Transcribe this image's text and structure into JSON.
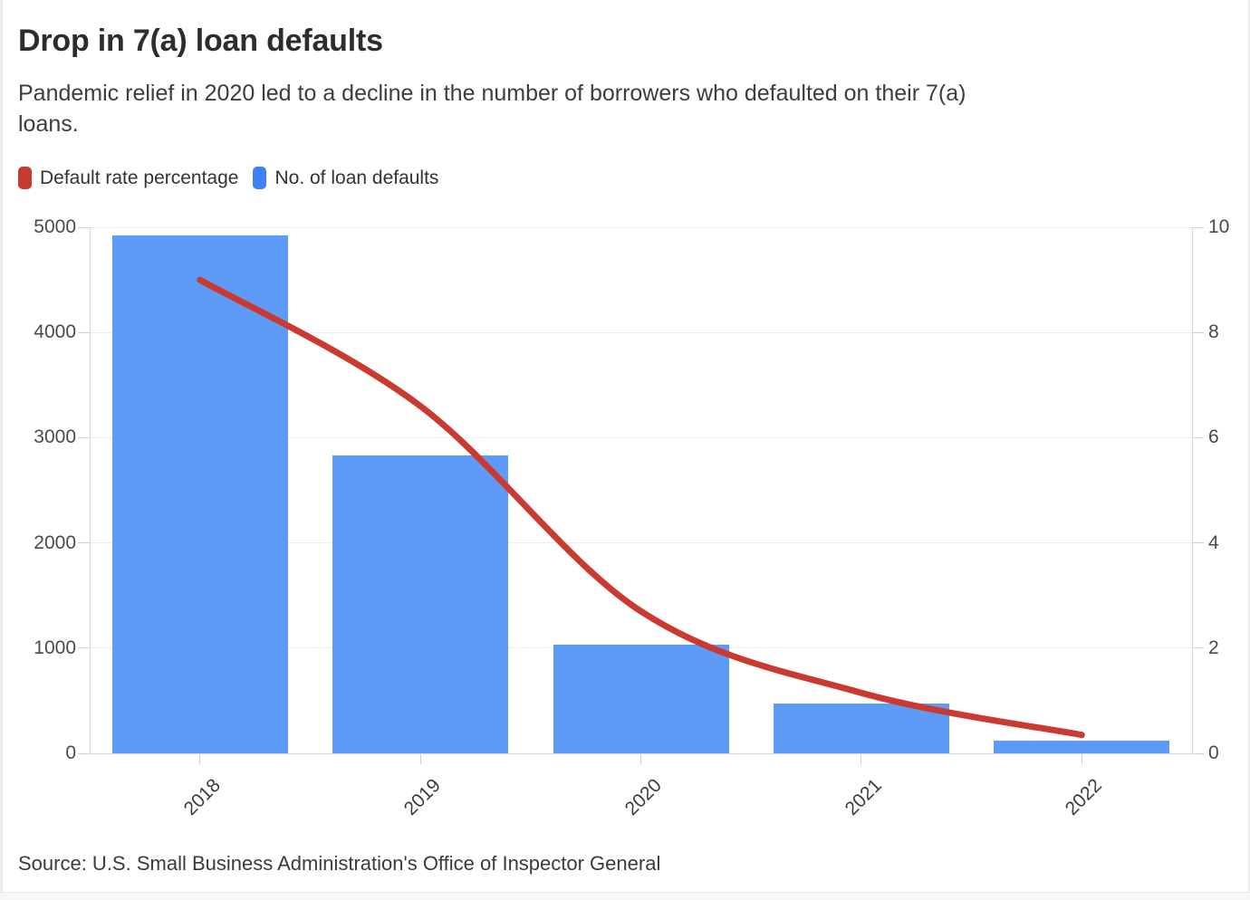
{
  "header": {
    "title": "Drop in 7(a) loan defaults",
    "subtitle": "Pandemic relief in 2020 led to a decline in the number of borrowers who defaulted on their 7(a)\nloans."
  },
  "legend": {
    "items": [
      {
        "label": "Default rate percentage",
        "color": "#c63a31"
      },
      {
        "label": "No. of loan defaults",
        "color": "#3f80f5"
      }
    ]
  },
  "chart_data": {
    "type": "bar+line",
    "categories": [
      "2018",
      "2019",
      "2020",
      "2021",
      "2022"
    ],
    "series": [
      {
        "name": "No. of loan defaults",
        "type": "bar",
        "axis": "left",
        "color": "#5d9bf7",
        "values": [
          4920,
          2830,
          1030,
          470,
          120
        ]
      },
      {
        "name": "Default rate percentage",
        "type": "line",
        "axis": "right",
        "color": "#ca3a31",
        "values": [
          9.0,
          6.6,
          2.7,
          1.15,
          0.35
        ]
      }
    ],
    "left_axis": {
      "min": 0,
      "max": 5000,
      "ticks": [
        0,
        1000,
        2000,
        3000,
        4000,
        5000
      ]
    },
    "right_axis": {
      "min": 0,
      "max": 10,
      "ticks": [
        0,
        2,
        4,
        6,
        8,
        10
      ]
    },
    "grid": true,
    "legend_position": "top"
  },
  "source": {
    "text": "Source: U.S. Small Business Administration's Office of Inspector General"
  }
}
